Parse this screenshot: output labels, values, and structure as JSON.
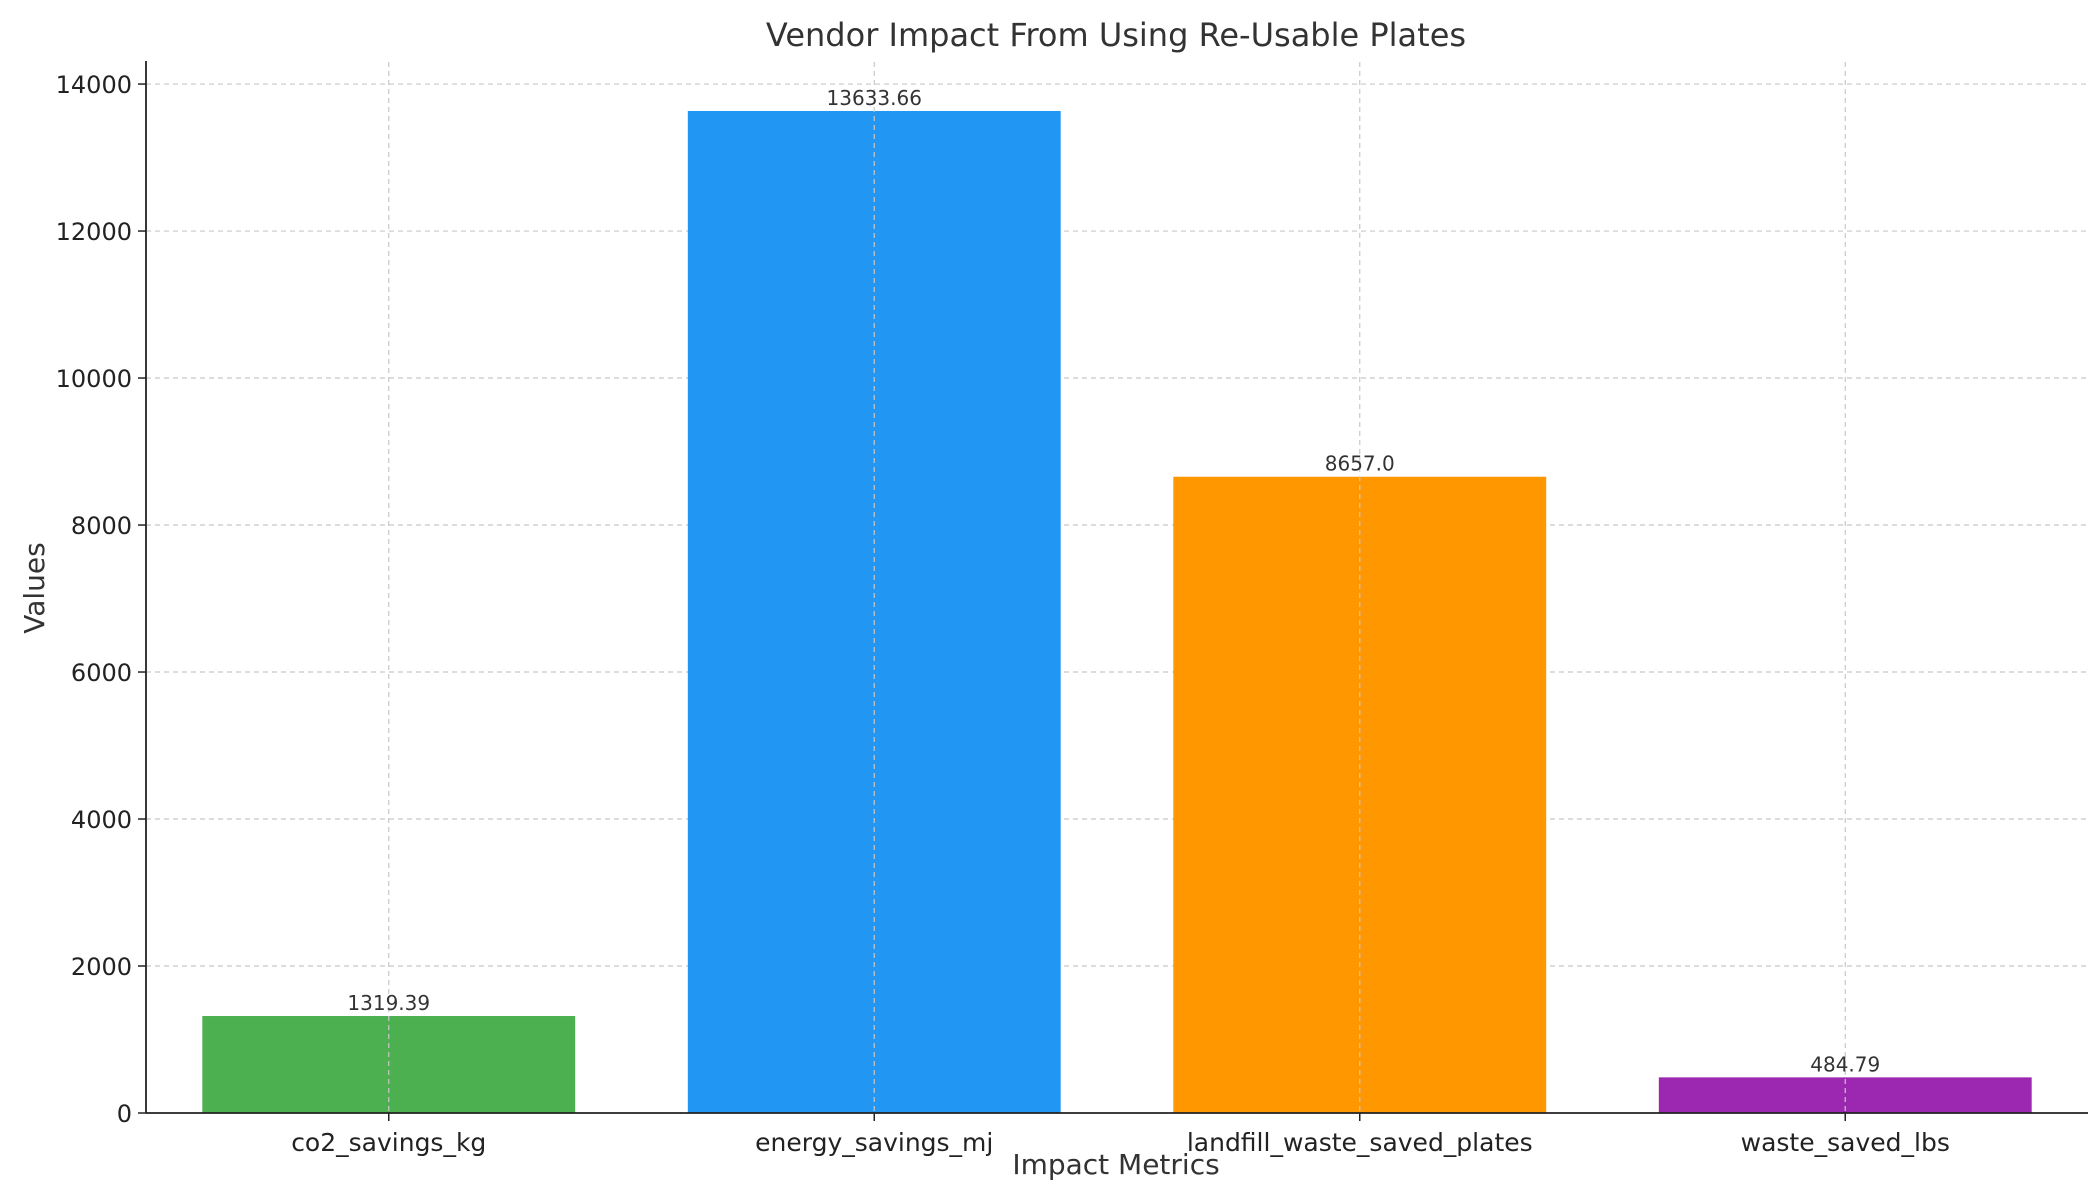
{
  "chart_data": {
    "type": "bar",
    "title": "Vendor Impact From Using Re-Usable Plates",
    "xlabel": "Impact Metrics",
    "ylabel": "Values",
    "categories": [
      "co2_savings_kg",
      "energy_savings_mj",
      "landfill_waste_saved_plates",
      "waste_saved_lbs"
    ],
    "values": [
      1319.39,
      13633.66,
      8657.0,
      484.79
    ],
    "value_labels": [
      "1319.39",
      "13633.66",
      "8657.0",
      "484.79"
    ],
    "colors": [
      "#4caf50",
      "#2196f3",
      "#ff9800",
      "#9c27b0"
    ],
    "ylim": [
      0,
      14300
    ],
    "yticks": [
      0,
      2000,
      4000,
      6000,
      8000,
      10000,
      12000,
      14000
    ],
    "grid": true,
    "legend": "none"
  }
}
